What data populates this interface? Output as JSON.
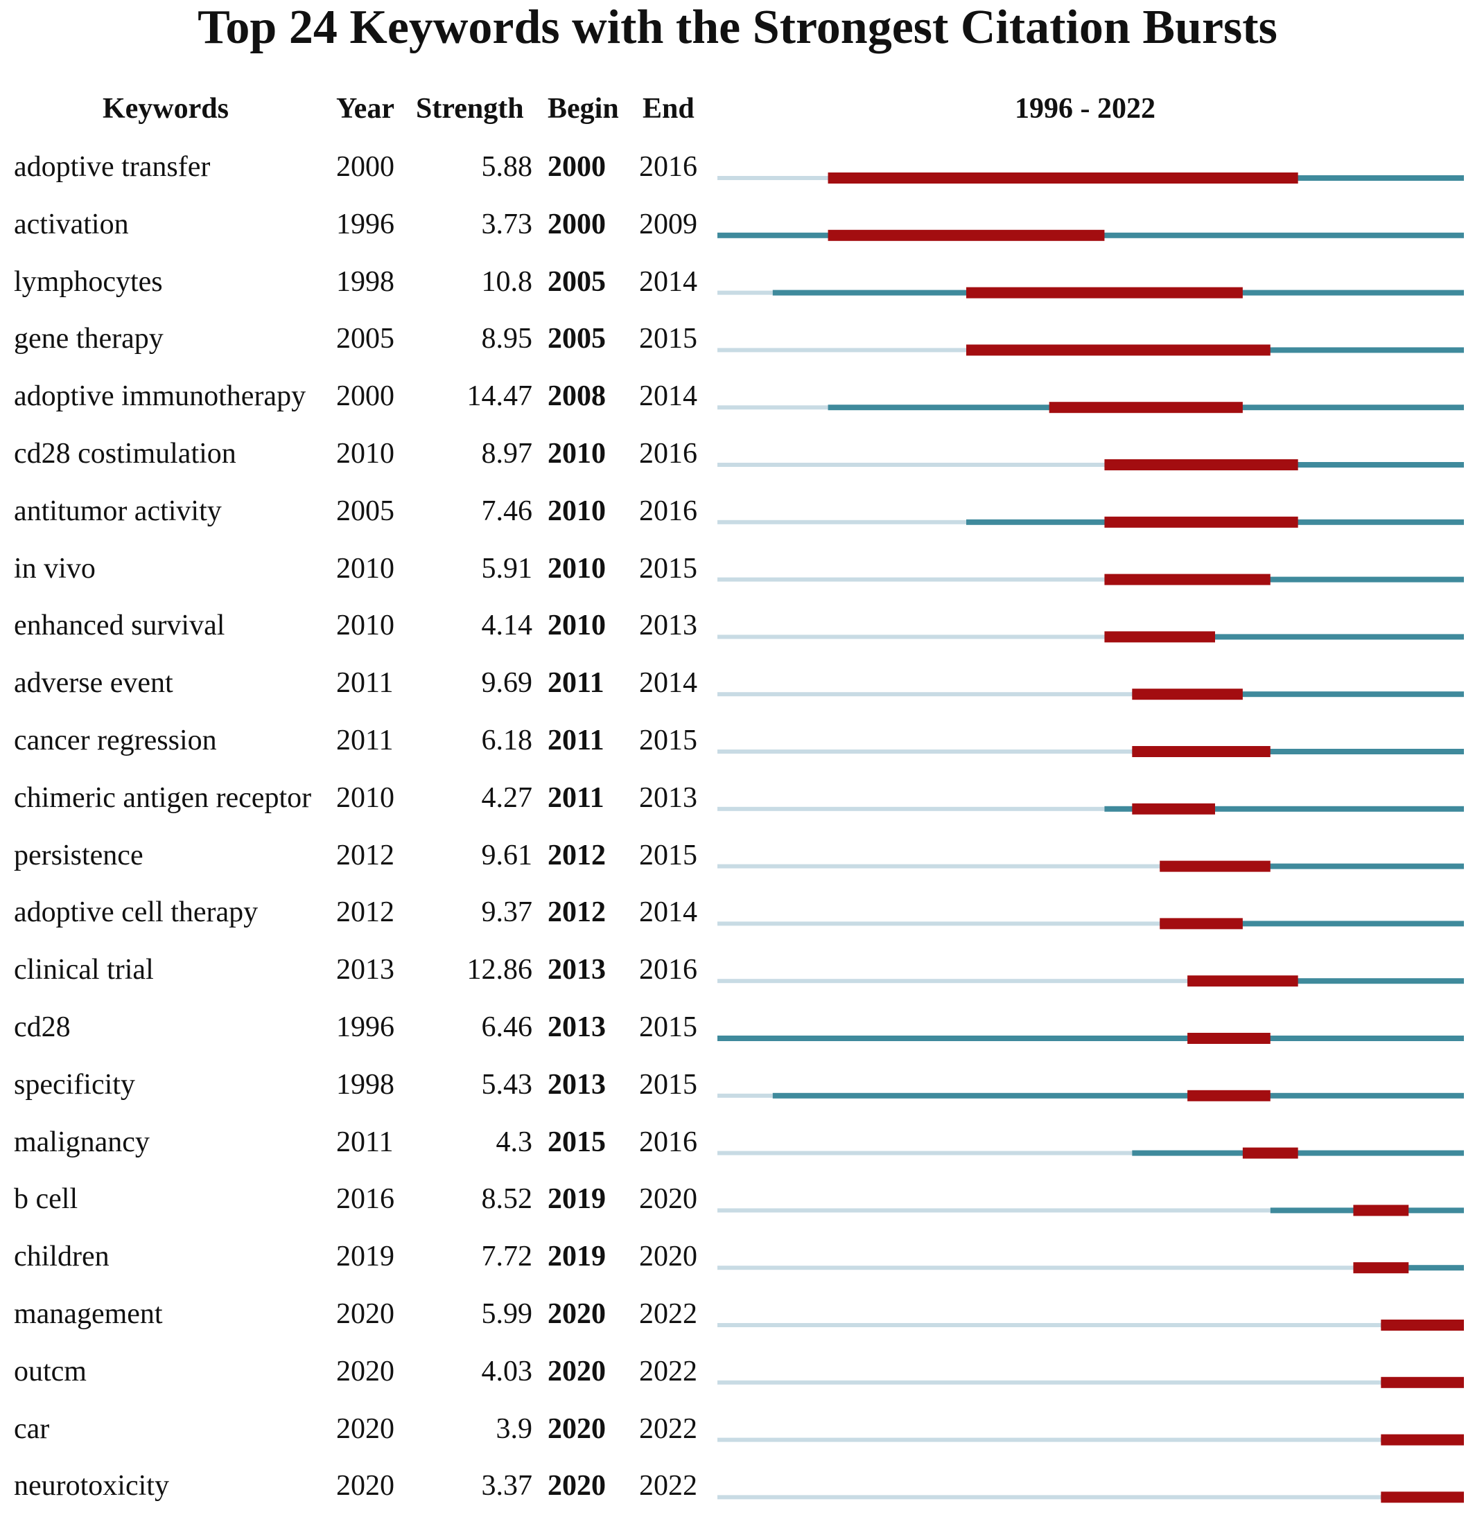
{
  "chart_data": {
    "type": "table",
    "title": "Top 24 Keywords with the Strongest Citation Bursts",
    "columns": [
      "Keywords",
      "Year",
      "Strength",
      "Begin",
      "End",
      "1996 - 2022"
    ],
    "range": [
      1996,
      2022
    ],
    "colors": {
      "burst": "#a30d10",
      "active": "#3f8a9c",
      "inactive": "#c8dbe4"
    },
    "rows": [
      {
        "keyword": "adoptive transfer",
        "year": "2000",
        "strength": "5.88",
        "begin": "2000",
        "end": "2016"
      },
      {
        "keyword": "activation",
        "year": "1996",
        "strength": "3.73",
        "begin": "2000",
        "end": "2009"
      },
      {
        "keyword": "lymphocytes",
        "year": "1998",
        "strength": "10.8",
        "begin": "2005",
        "end": "2014"
      },
      {
        "keyword": "gene therapy",
        "year": "2005",
        "strength": "8.95",
        "begin": "2005",
        "end": "2015"
      },
      {
        "keyword": "adoptive immunotherapy",
        "year": "2000",
        "strength": "14.47",
        "begin": "2008",
        "end": "2014"
      },
      {
        "keyword": "cd28 costimulation",
        "year": "2010",
        "strength": "8.97",
        "begin": "2010",
        "end": "2016"
      },
      {
        "keyword": "antitumor activity",
        "year": "2005",
        "strength": "7.46",
        "begin": "2010",
        "end": "2016"
      },
      {
        "keyword": "in vivo",
        "year": "2010",
        "strength": "5.91",
        "begin": "2010",
        "end": "2015"
      },
      {
        "keyword": "enhanced survival",
        "year": "2010",
        "strength": "4.14",
        "begin": "2010",
        "end": "2013"
      },
      {
        "keyword": "adverse event",
        "year": "2011",
        "strength": "9.69",
        "begin": "2011",
        "end": "2014"
      },
      {
        "keyword": "cancer regression",
        "year": "2011",
        "strength": "6.18",
        "begin": "2011",
        "end": "2015"
      },
      {
        "keyword": "chimeric antigen receptor",
        "year": "2010",
        "strength": "4.27",
        "begin": "2011",
        "end": "2013"
      },
      {
        "keyword": "persistence",
        "year": "2012",
        "strength": "9.61",
        "begin": "2012",
        "end": "2015"
      },
      {
        "keyword": "adoptive cell therapy",
        "year": "2012",
        "strength": "9.37",
        "begin": "2012",
        "end": "2014"
      },
      {
        "keyword": "clinical trial",
        "year": "2013",
        "strength": "12.86",
        "begin": "2013",
        "end": "2016"
      },
      {
        "keyword": "cd28",
        "year": "1996",
        "strength": "6.46",
        "begin": "2013",
        "end": "2015"
      },
      {
        "keyword": "specificity",
        "year": "1998",
        "strength": "5.43",
        "begin": "2013",
        "end": "2015"
      },
      {
        "keyword": "malignancy",
        "year": "2011",
        "strength": "4.3",
        "begin": "2015",
        "end": "2016"
      },
      {
        "keyword": "b cell",
        "year": "2016",
        "strength": "8.52",
        "begin": "2019",
        "end": "2020"
      },
      {
        "keyword": "children",
        "year": "2019",
        "strength": "7.72",
        "begin": "2019",
        "end": "2020"
      },
      {
        "keyword": "management",
        "year": "2020",
        "strength": "5.99",
        "begin": "2020",
        "end": "2022"
      },
      {
        "keyword": "outcm",
        "year": "2020",
        "strength": "4.03",
        "begin": "2020",
        "end": "2022"
      },
      {
        "keyword": "car",
        "year": "2020",
        "strength": "3.9",
        "begin": "2020",
        "end": "2022"
      },
      {
        "keyword": "neurotoxicity",
        "year": "2020",
        "strength": "3.37",
        "begin": "2020",
        "end": "2022"
      }
    ]
  }
}
